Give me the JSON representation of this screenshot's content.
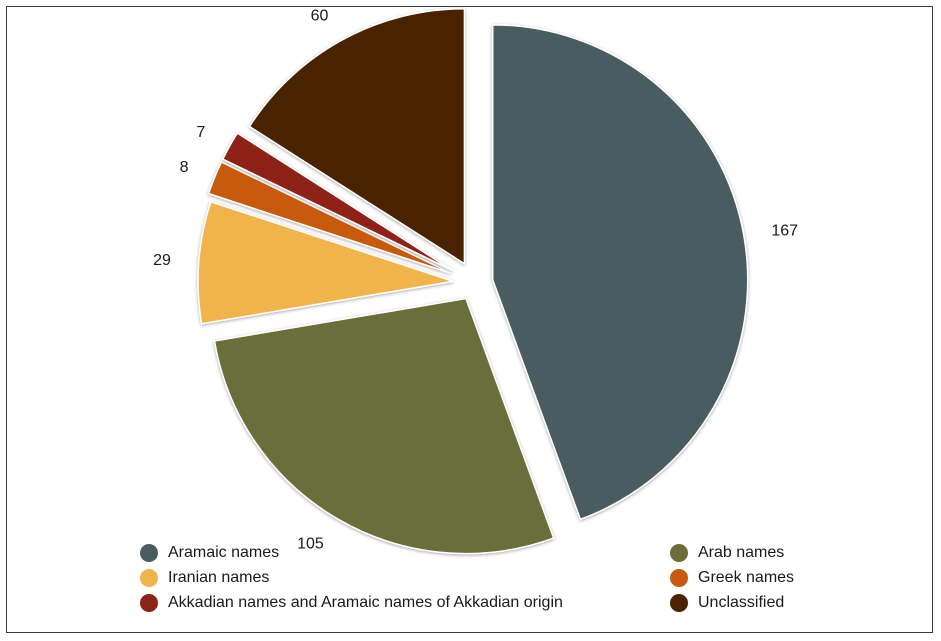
{
  "chart_data": {
    "type": "pie",
    "title": "",
    "slices": [
      {
        "label": "Aramaic names",
        "value": 167,
        "color": "#4a5c62"
      },
      {
        "label": "Arab names",
        "value": 105,
        "color": "#6b6e3a"
      },
      {
        "label": "Iranian names",
        "value": 29,
        "color": "#f0b44c"
      },
      {
        "label": "Greek names",
        "value": 8,
        "color": "#c75a0c"
      },
      {
        "label": "Akkadian names and Aramaic names of Akkadian origin",
        "value": 7,
        "color": "#8e2418"
      },
      {
        "label": "Unclassified",
        "value": 60,
        "color": "#4a2200"
      }
    ],
    "legend_position": "bottom",
    "exploded": true
  }
}
